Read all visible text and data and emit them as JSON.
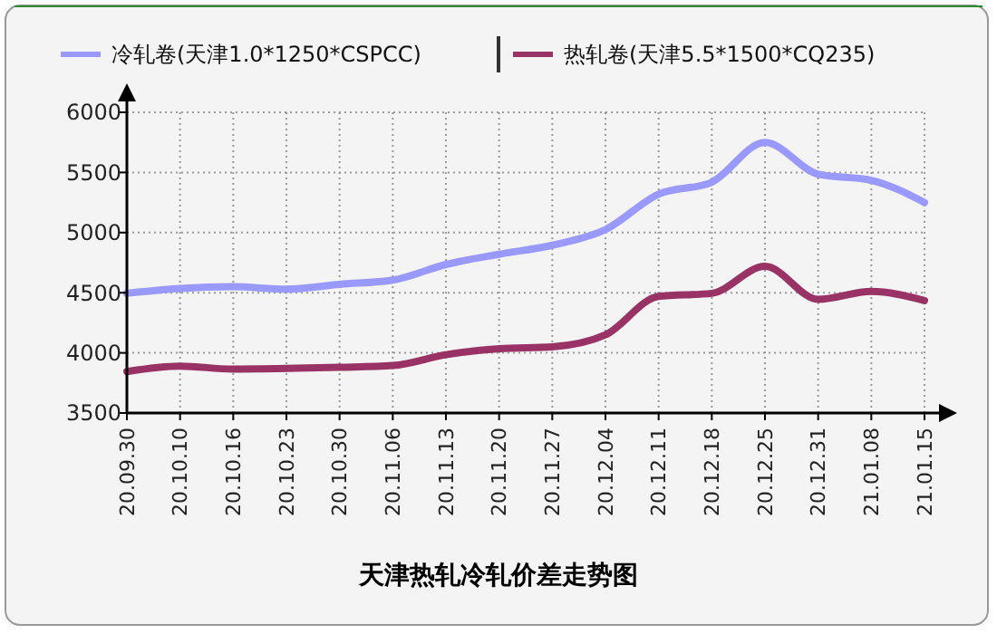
{
  "chart_data": {
    "type": "line",
    "title": "天津热轧冷轧价差走势图",
    "categories": [
      "20.09.30",
      "20.10.10",
      "20.10.16",
      "20.10.23",
      "20.10.30",
      "20.11.06",
      "20.11.13",
      "20.11.20",
      "20.11.27",
      "20.12.04",
      "20.12.11",
      "20.12.18",
      "20.12.25",
      "20.12.31",
      "21.01.08",
      "21.01.15"
    ],
    "series": [
      {
        "name": "冷轧卷(天津1.0*1250*CSPCC)",
        "color": "#9999ff",
        "values": [
          4495,
          4535,
          4550,
          4530,
          4570,
          4605,
          4735,
          4820,
          4895,
          5025,
          5320,
          5420,
          5750,
          5485,
          5435,
          5250
        ]
      },
      {
        "name": "热轧卷(天津5.5*1500*CQ235)",
        "color": "#993366",
        "values": [
          3845,
          3890,
          3865,
          3870,
          3880,
          3895,
          3985,
          4035,
          4050,
          4150,
          4470,
          4495,
          4720,
          4445,
          4510,
          4435
        ]
      }
    ],
    "ylim": [
      3500,
      6000
    ],
    "yticks": [
      3500,
      4000,
      4500,
      5000,
      5500,
      6000
    ],
    "grid": true,
    "legend": "top",
    "marker": "none",
    "line_style": "solid"
  }
}
